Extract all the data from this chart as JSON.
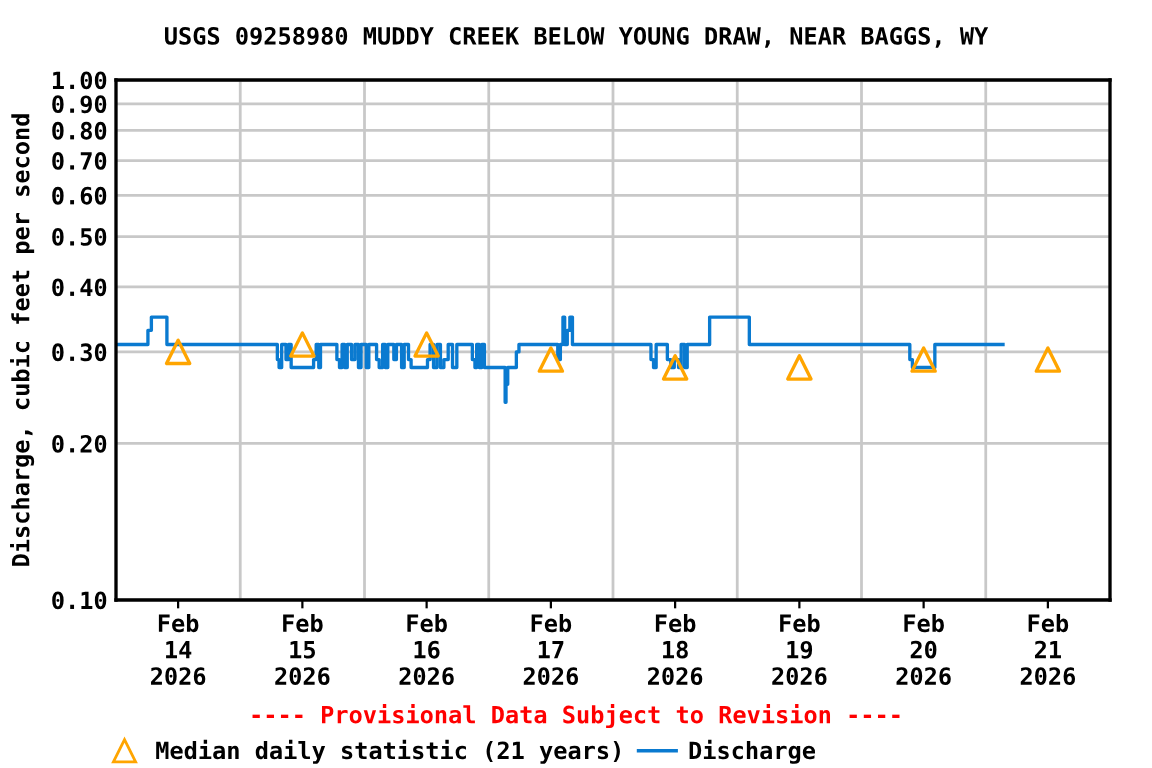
{
  "chart_data": {
    "type": "step",
    "title": "USGS 09258980 MUDDY CREEK BELOW YOUNG DRAW, NEAR BAGGS, WY",
    "ylabel": "Discharge, cubic feet per second",
    "annotations": [
      "---- Provisional Data Subject to Revision ----"
    ],
    "log": "y",
    "grid": true,
    "legend": "bottom",
    "xlim": [
      "2026-02-14T00:00",
      "2026-02-22T00:00"
    ],
    "xticks": [
      {
        "value": "2026-02-14T12:00",
        "label": "Feb\n14\n2026"
      },
      {
        "value": "2026-02-15T00:00",
        "label": null
      },
      {
        "value": "2026-02-15T12:00",
        "label": "Feb\n15\n2026"
      },
      {
        "value": "2026-02-16T00:00",
        "label": null
      },
      {
        "value": "2026-02-16T12:00",
        "label": "Feb\n16\n2026"
      },
      {
        "value": "2026-02-17T00:00",
        "label": null
      },
      {
        "value": "2026-02-17T12:00",
        "label": "Feb\n17\n2026"
      },
      {
        "value": "2026-02-18T00:00",
        "label": null
      },
      {
        "value": "2026-02-18T12:00",
        "label": "Feb\n18\n2026"
      },
      {
        "value": "2026-02-19T00:00",
        "label": null
      },
      {
        "value": "2026-02-19T12:00",
        "label": "Feb\n19\n2026"
      },
      {
        "value": "2026-02-20T00:00",
        "label": null
      },
      {
        "value": "2026-02-20T12:00",
        "label": "Feb\n20\n2026"
      },
      {
        "value": "2026-02-21T00:00",
        "label": null
      },
      {
        "value": "2026-02-21T12:00",
        "label": "Feb\n21\n2026"
      }
    ],
    "ylim": [
      0.1,
      1.0
    ],
    "yticks": [
      {
        "value": 0.1,
        "label": "0.10"
      },
      {
        "value": 0.2,
        "label": "0.20"
      },
      {
        "value": 0.3,
        "label": "0.30"
      },
      {
        "value": 0.4,
        "label": "0.40"
      },
      {
        "value": 0.5,
        "label": "0.50"
      },
      {
        "value": 0.6,
        "label": "0.60"
      },
      {
        "value": 0.7,
        "label": "0.70"
      },
      {
        "value": 0.8,
        "label": "0.80"
      },
      {
        "value": 0.9,
        "label": "0.90"
      },
      {
        "value": 1.0,
        "label": "1.00"
      }
    ],
    "series": [
      {
        "name": "Median daily statistic (21 years)",
        "type": "scatter",
        "marker": "triangle",
        "color": "#ffa500",
        "x": [
          "2026-02-14T12:00",
          "2026-02-15T12:00",
          "2026-02-16T12:00",
          "2026-02-17T12:00",
          "2026-02-18T12:00",
          "2026-02-19T12:00",
          "2026-02-20T12:00",
          "2026-02-21T12:00"
        ],
        "values": [
          0.3,
          0.31,
          0.31,
          0.29,
          0.28,
          0.28,
          0.29,
          0.29
        ]
      },
      {
        "name": "Discharge",
        "color": "#0a7ad0",
        "x": [
          "2026-02-14T00:00",
          "2026-02-14T06:10",
          "2026-02-14T06:50",
          "2026-02-14T09:50",
          "2026-02-15T07:10",
          "2026-02-15T07:30",
          "2026-02-15T08:00",
          "2026-02-15T08:50",
          "2026-02-15T09:20",
          "2026-02-15T09:50",
          "2026-02-15T14:10",
          "2026-02-15T14:40",
          "2026-02-15T15:10",
          "2026-02-15T15:30",
          "2026-02-15T18:40",
          "2026-02-15T19:10",
          "2026-02-15T19:40",
          "2026-02-15T20:10",
          "2026-02-15T20:40",
          "2026-02-15T21:30",
          "2026-02-15T22:10",
          "2026-02-15T22:50",
          "2026-02-15T23:20",
          "2026-02-16T00:20",
          "2026-02-16T00:50",
          "2026-02-16T02:20",
          "2026-02-16T02:50",
          "2026-02-16T03:30",
          "2026-02-16T04:00",
          "2026-02-16T04:30",
          "2026-02-16T05:40",
          "2026-02-16T06:10",
          "2026-02-16T07:10",
          "2026-02-16T07:40",
          "2026-02-16T08:30",
          "2026-02-16T09:00",
          "2026-02-16T12:10",
          "2026-02-16T12:40",
          "2026-02-16T13:20",
          "2026-02-16T14:00",
          "2026-02-16T14:40",
          "2026-02-16T15:20",
          "2026-02-16T16:10",
          "2026-02-16T17:00",
          "2026-02-16T17:50",
          "2026-02-16T20:50",
          "2026-02-16T21:20",
          "2026-02-16T21:40",
          "2026-02-16T22:10",
          "2026-02-16T22:40",
          "2026-02-16T23:10",
          "2026-02-17T03:10",
          "2026-02-17T03:20",
          "2026-02-17T03:40",
          "2026-02-17T05:20",
          "2026-02-17T05:50",
          "2026-02-17T13:20",
          "2026-02-17T13:50",
          "2026-02-17T14:20",
          "2026-02-17T14:40",
          "2026-02-17T15:10",
          "2026-02-17T15:40",
          "2026-02-17T16:10",
          "2026-02-18T07:20",
          "2026-02-18T07:50",
          "2026-02-18T08:20",
          "2026-02-18T10:30",
          "2026-02-18T11:10",
          "2026-02-18T11:50",
          "2026-02-18T12:40",
          "2026-02-18T13:10",
          "2026-02-18T13:50",
          "2026-02-18T14:20",
          "2026-02-18T18:40",
          "2026-02-19T02:20",
          "2026-02-20T09:20",
          "2026-02-20T09:50",
          "2026-02-20T14:10",
          "2026-02-21T03:20"
        ],
        "values": [
          0.31,
          0.33,
          0.35,
          0.31,
          0.29,
          0.28,
          0.31,
          0.29,
          0.31,
          0.28,
          0.29,
          0.31,
          0.28,
          0.31,
          0.29,
          0.28,
          0.31,
          0.28,
          0.31,
          0.29,
          0.31,
          0.28,
          0.31,
          0.28,
          0.31,
          0.29,
          0.28,
          0.31,
          0.28,
          0.31,
          0.29,
          0.31,
          0.28,
          0.31,
          0.29,
          0.28,
          0.29,
          0.31,
          0.28,
          0.31,
          0.28,
          0.29,
          0.31,
          0.28,
          0.31,
          0.29,
          0.28,
          0.31,
          0.28,
          0.31,
          0.28,
          0.24,
          0.26,
          0.28,
          0.3,
          0.31,
          0.29,
          0.31,
          0.35,
          0.31,
          0.33,
          0.35,
          0.31,
          0.29,
          0.28,
          0.31,
          0.29,
          0.28,
          0.29,
          0.28,
          0.31,
          0.28,
          0.31,
          0.35,
          0.31,
          0.29,
          0.28,
          0.31,
          0.31
        ]
      }
    ]
  }
}
